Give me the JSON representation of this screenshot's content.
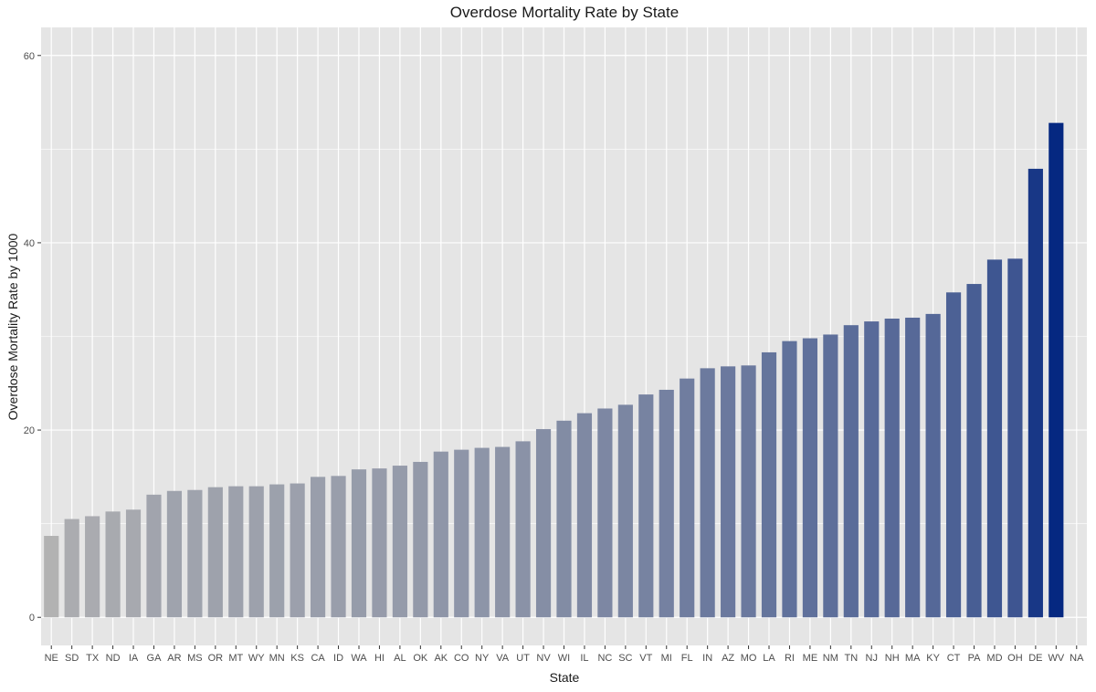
{
  "chart_data": {
    "type": "bar",
    "title": "Overdose Mortality Rate by State",
    "xlabel": "State",
    "ylabel": "Overdose Mortality Rate by 1000",
    "ylim": [
      -3,
      63
    ],
    "yticks": [
      0,
      20,
      40,
      60
    ],
    "grid": true,
    "categories": [
      "NE",
      "SD",
      "TX",
      "ND",
      "IA",
      "GA",
      "AR",
      "MS",
      "OR",
      "MT",
      "WY",
      "MN",
      "KS",
      "CA",
      "ID",
      "WA",
      "HI",
      "AL",
      "OK",
      "AK",
      "CO",
      "NY",
      "VA",
      "UT",
      "NV",
      "WI",
      "IL",
      "NC",
      "SC",
      "VT",
      "MI",
      "FL",
      "IN",
      "AZ",
      "MO",
      "LA",
      "RI",
      "ME",
      "NM",
      "TN",
      "NJ",
      "NH",
      "MA",
      "KY",
      "CT",
      "PA",
      "MD",
      "OH",
      "DE",
      "WV",
      "NA"
    ],
    "values": [
      8.7,
      10.5,
      10.8,
      11.3,
      11.5,
      13.1,
      13.5,
      13.6,
      13.9,
      14.0,
      14.0,
      14.2,
      14.3,
      15.0,
      15.1,
      15.8,
      15.9,
      16.2,
      16.6,
      17.7,
      17.9,
      18.1,
      18.2,
      18.8,
      20.1,
      21.0,
      21.8,
      22.3,
      22.7,
      23.8,
      24.3,
      25.5,
      26.6,
      26.8,
      26.9,
      28.3,
      29.5,
      29.8,
      30.2,
      31.2,
      31.6,
      31.9,
      32.0,
      32.4,
      34.7,
      35.6,
      38.2,
      38.3,
      47.9,
      52.8,
      null
    ],
    "color_low": "#b2b2b2",
    "color_high": "#052881",
    "panel_background": "#e5e5e5",
    "grid_color": "#ffffff"
  }
}
